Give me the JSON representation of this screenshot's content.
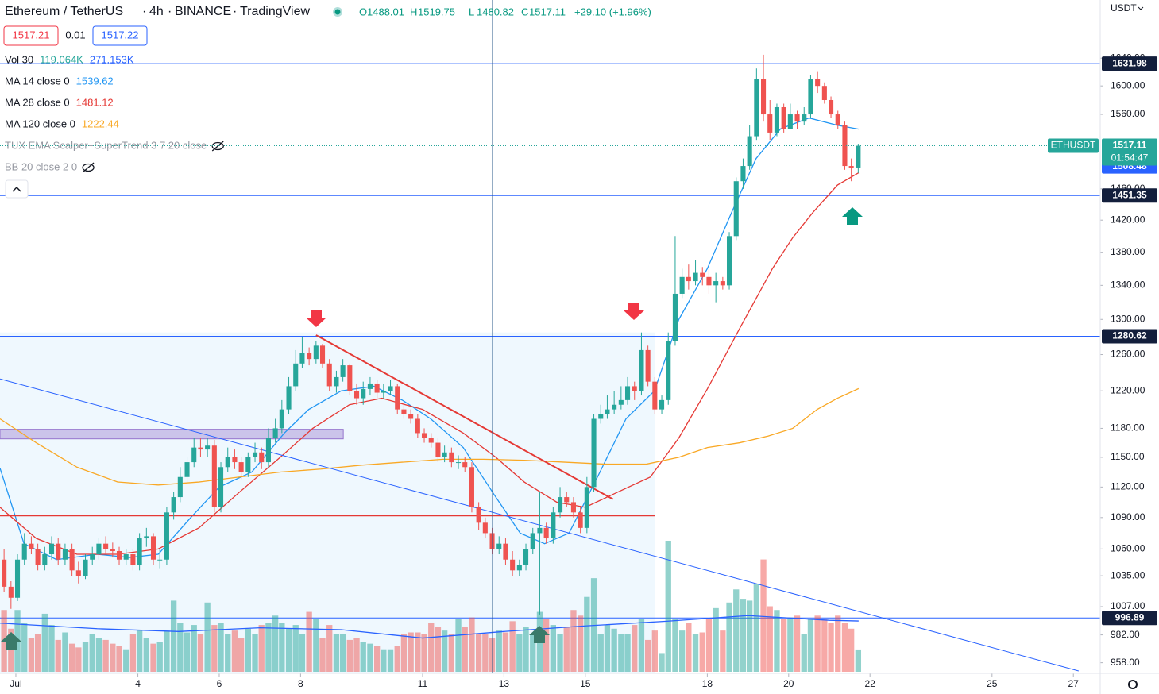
{
  "header": {
    "symbol": "Ethereum / TetherUS",
    "interval": "4h",
    "exchange": "BINANCE",
    "platform": "TradingView",
    "ohlc_letters": [
      "O",
      "H",
      "L",
      "C"
    ],
    "change": "+29.10 (+1.96%)",
    "quote": [
      "1517.21",
      "0.01",
      "1517.22"
    ],
    "currency": "USDT",
    "ticker": "ETHUSDT",
    "countdown": "01:54:47"
  },
  "indicators": [
    {
      "name": "Vol 30",
      "values": [
        "119.064K",
        "271.153K"
      ],
      "colors": [
        "#26a69a",
        "#2962ff"
      ]
    },
    {
      "name": "MA 14 close 0",
      "values": [
        "1539.62"
      ],
      "colors": [
        "#2196f3"
      ]
    },
    {
      "name": "MA 28 close 0",
      "values": [
        "1481.12"
      ],
      "colors": [
        "#e53935"
      ]
    },
    {
      "name": "MA 120 close 0",
      "values": [
        "1222.44"
      ],
      "colors": [
        "#f9a825"
      ]
    },
    {
      "name": "TUX EMA Scalper+SuperTrend 3 7 20 close",
      "values": [],
      "colors": []
    },
    {
      "name": "BB 20 close 2 0",
      "values": [],
      "colors": []
    }
  ],
  "chart_data": {
    "type": "candlestick",
    "log_scale": true,
    "grid": false,
    "up_color": "#26a69a",
    "down_color": "#ef5350",
    "xlim": [
      0.61,
      27.66
    ],
    "ylim": [
      949,
      1727
    ],
    "xticks": [
      {
        "value": 1,
        "label": "Jul"
      },
      4,
      6,
      8,
      11,
      13,
      15,
      18,
      20,
      22,
      25,
      27
    ],
    "yticks": [
      {
        "value": 958,
        "label": "958.00"
      },
      {
        "value": 982,
        "label": "982.00"
      },
      {
        "value": 1007,
        "label": "1007.00"
      },
      {
        "value": 1035,
        "label": "1035.00"
      },
      {
        "value": 1060,
        "label": "1060.00"
      },
      {
        "value": 1090,
        "label": "1090.00"
      },
      {
        "value": 1120,
        "label": "1120.00"
      },
      {
        "value": 1150,
        "label": "1150.00"
      },
      {
        "value": 1180,
        "label": "1180.00"
      },
      {
        "value": 1220,
        "label": "1220.00"
      },
      {
        "value": 1260,
        "label": "1260.00"
      },
      {
        "value": 1300,
        "label": "1300.00"
      },
      {
        "value": 1340,
        "label": "1340.00"
      },
      {
        "value": 1380,
        "label": "1380.00"
      },
      {
        "value": 1420,
        "label": "1420.00"
      },
      {
        "value": 1460,
        "label": "1460.00"
      },
      {
        "value": 1560,
        "label": "1560.00"
      },
      {
        "value": 1600,
        "label": "1600.00"
      },
      {
        "value": 1640,
        "label": "1640.00"
      }
    ],
    "x": [
      0.71,
      0.88,
      1.04,
      1.21,
      1.38,
      1.54,
      1.71,
      1.88,
      2.04,
      2.21,
      2.38,
      2.54,
      2.71,
      2.88,
      3.04,
      3.21,
      3.38,
      3.54,
      3.71,
      3.88,
      4.04,
      4.21,
      4.38,
      4.54,
      4.71,
      4.88,
      5.04,
      5.21,
      5.38,
      5.54,
      5.71,
      5.88,
      6.04,
      6.21,
      6.38,
      6.54,
      6.71,
      6.88,
      7.04,
      7.21,
      7.38,
      7.54,
      7.71,
      7.88,
      8.04,
      8.21,
      8.38,
      8.54,
      8.71,
      8.88,
      9.04,
      9.21,
      9.38,
      9.54,
      9.71,
      9.88,
      10.04,
      10.21,
      10.38,
      10.54,
      10.71,
      10.88,
      11.04,
      11.21,
      11.38,
      11.54,
      11.71,
      11.88,
      12.04,
      12.21,
      12.38,
      12.54,
      12.71,
      12.88,
      13.04,
      13.21,
      13.38,
      13.54,
      13.71,
      13.88,
      14.04,
      14.21,
      14.38,
      14.54,
      14.71,
      14.88,
      15.04,
      15.21,
      15.38,
      15.54,
      15.71,
      15.88,
      16.04,
      16.21,
      16.38,
      16.54,
      16.71,
      16.88,
      17.04,
      17.21,
      17.38,
      17.54,
      17.71,
      17.88,
      18.04,
      18.21,
      18.38,
      18.54,
      18.71,
      18.88,
      19.04,
      19.21,
      19.38,
      19.54,
      19.71,
      19.88,
      20.04,
      20.21,
      20.38,
      20.54,
      20.71,
      20.88,
      21.04,
      21.21,
      21.38,
      21.54,
      21.71
    ],
    "open": [
      1050,
      1025,
      1015,
      1050,
      1065,
      1060,
      1045,
      1055,
      1065,
      1050,
      1060,
      1040,
      1035,
      1050,
      1055,
      1065,
      1060,
      1058,
      1050,
      1055,
      1045,
      1070,
      1072,
      1050,
      1050,
      1095,
      1110,
      1130,
      1145,
      1160,
      1158,
      1162,
      1100,
      1140,
      1150,
      1145,
      1135,
      1150,
      1155,
      1145,
      1170,
      1180,
      1200,
      1225,
      1250,
      1262,
      1255,
      1270,
      1250,
      1225,
      1235,
      1248,
      1220,
      1212,
      1222,
      1228,
      1218,
      1220,
      1225,
      1200,
      1195,
      1190,
      1175,
      1170,
      1165,
      1150,
      1155,
      1145,
      1145,
      1140,
      1100,
      1085,
      1075,
      1060,
      1065,
      1050,
      1040,
      1045,
      1060,
      1075,
      1080,
      1070,
      1095,
      1110,
      1105,
      1095,
      1080,
      1120,
      1190,
      1195,
      1200,
      1205,
      1210,
      1225,
      1220,
      1265,
      1230,
      1200,
      1210,
      1275,
      1330,
      1350,
      1345,
      1355,
      1350,
      1340,
      1345,
      1340,
      1400,
      1470,
      1490,
      1530,
      1610,
      1560,
      1535,
      1570,
      1540,
      1560,
      1550,
      1560,
      1610,
      1600,
      1580,
      1560,
      1545,
      1490,
      1488.01
    ],
    "high": [
      1060,
      1030,
      1055,
      1075,
      1072,
      1065,
      1062,
      1072,
      1070,
      1065,
      1065,
      1048,
      1055,
      1062,
      1070,
      1072,
      1066,
      1062,
      1060,
      1060,
      1075,
      1080,
      1075,
      1060,
      1100,
      1115,
      1140,
      1150,
      1170,
      1170,
      1170,
      1168,
      1145,
      1160,
      1158,
      1150,
      1155,
      1165,
      1160,
      1180,
      1190,
      1210,
      1235,
      1265,
      1280,
      1268,
      1275,
      1272,
      1255,
      1242,
      1255,
      1250,
      1228,
      1230,
      1235,
      1232,
      1228,
      1232,
      1228,
      1205,
      1200,
      1195,
      1180,
      1175,
      1170,
      1162,
      1160,
      1152,
      1150,
      1145,
      1105,
      1090,
      1080,
      1072,
      1070,
      1058,
      1050,
      1065,
      1080,
      1115,
      1085,
      1100,
      1120,
      1115,
      1110,
      1100,
      1130,
      1195,
      1205,
      1215,
      1220,
      1225,
      1235,
      1230,
      1285,
      1270,
      1235,
      1215,
      1285,
      1400,
      1360,
      1365,
      1370,
      1362,
      1360,
      1355,
      1350,
      1405,
      1475,
      1500,
      1545,
      1625,
      1645,
      1580,
      1575,
      1575,
      1575,
      1565,
      1570,
      1615,
      1620,
      1605,
      1585,
      1565,
      1550,
      1500,
      1519.75
    ],
    "low": [
      1020,
      1005,
      1012,
      1045,
      1055,
      1040,
      1040,
      1050,
      1045,
      1045,
      1035,
      1028,
      1032,
      1045,
      1050,
      1055,
      1052,
      1045,
      1045,
      1040,
      1040,
      1062,
      1045,
      1042,
      1045,
      1088,
      1105,
      1125,
      1140,
      1150,
      1150,
      1095,
      1095,
      1135,
      1138,
      1128,
      1130,
      1145,
      1138,
      1140,
      1165,
      1175,
      1195,
      1220,
      1245,
      1248,
      1250,
      1245,
      1220,
      1218,
      1230,
      1215,
      1205,
      1205,
      1215,
      1212,
      1212,
      1215,
      1195,
      1190,
      1185,
      1170,
      1165,
      1160,
      1145,
      1145,
      1140,
      1138,
      1135,
      1095,
      1078,
      1070,
      1055,
      1055,
      1045,
      1035,
      1035,
      1040,
      1055,
      1000,
      1065,
      1065,
      1090,
      1100,
      1090,
      1075,
      1075,
      1115,
      1185,
      1190,
      1195,
      1200,
      1205,
      1210,
      1215,
      1225,
      1195,
      1195,
      1205,
      1270,
      1325,
      1335,
      1340,
      1340,
      1330,
      1320,
      1335,
      1335,
      1395,
      1460,
      1485,
      1525,
      1550,
      1525,
      1530,
      1535,
      1540,
      1540,
      1545,
      1555,
      1590,
      1575,
      1555,
      1540,
      1485,
      1470,
      1480.82
    ],
    "close": [
      1025,
      1015,
      1050,
      1065,
      1060,
      1045,
      1055,
      1065,
      1050,
      1060,
      1040,
      1035,
      1050,
      1055,
      1065,
      1060,
      1058,
      1050,
      1055,
      1045,
      1070,
      1072,
      1050,
      1050,
      1095,
      1110,
      1130,
      1145,
      1160,
      1158,
      1162,
      1100,
      1140,
      1150,
      1145,
      1135,
      1150,
      1155,
      1145,
      1170,
      1180,
      1200,
      1225,
      1250,
      1262,
      1255,
      1270,
      1250,
      1225,
      1235,
      1248,
      1220,
      1212,
      1222,
      1228,
      1218,
      1220,
      1225,
      1200,
      1195,
      1190,
      1175,
      1170,
      1165,
      1150,
      1155,
      1145,
      1145,
      1140,
      1100,
      1085,
      1075,
      1060,
      1065,
      1050,
      1040,
      1045,
      1060,
      1075,
      1080,
      1070,
      1095,
      1110,
      1105,
      1095,
      1080,
      1120,
      1190,
      1195,
      1200,
      1205,
      1210,
      1225,
      1220,
      1265,
      1230,
      1200,
      1210,
      1275,
      1330,
      1350,
      1345,
      1355,
      1350,
      1340,
      1345,
      1340,
      1400,
      1470,
      1490,
      1530,
      1610,
      1560,
      1535,
      1570,
      1540,
      1560,
      1550,
      1560,
      1610,
      1600,
      1580,
      1560,
      1545,
      1490,
      1488.01,
      1517.11
    ],
    "volume": [
      330,
      230,
      330,
      260,
      180,
      200,
      310,
      250,
      170,
      210,
      150,
      130,
      160,
      200,
      180,
      170,
      150,
      140,
      120,
      200,
      220,
      180,
      150,
      160,
      220,
      380,
      260,
      210,
      250,
      200,
      370,
      250,
      260,
      200,
      220,
      180,
      230,
      200,
      250,
      260,
      300,
      260,
      230,
      250,
      200,
      320,
      280,
      180,
      250,
      200,
      200,
      170,
      180,
      160,
      150,
      140,
      120,
      120,
      140,
      200,
      210,
      210,
      200,
      260,
      240,
      220,
      200,
      280,
      240,
      290,
      200,
      200,
      180,
      220,
      210,
      270,
      200,
      240,
      200,
      320,
      280,
      250,
      200,
      240,
      330,
      300,
      400,
      500,
      200,
      250,
      230,
      200,
      200,
      250,
      280,
      170,
      220,
      100,
      700,
      280,
      220,
      260,
      200,
      210,
      280,
      340,
      220,
      370,
      440,
      390,
      380,
      470,
      600,
      350,
      330,
      280,
      290,
      300,
      200,
      280,
      300,
      280,
      260,
      300,
      260,
      230,
      119.064
    ],
    "volume_ma": {
      "color": "#2962ff",
      "x": [
        0.61,
        3,
        5,
        7,
        9,
        11,
        13,
        15,
        17,
        19,
        21,
        21.72
      ],
      "values": [
        260,
        230,
        215,
        235,
        225,
        180,
        215,
        245,
        270,
        300,
        275,
        271.153
      ]
    },
    "overlays": [
      {
        "name": "MA 14",
        "color": "#2196f3",
        "x": [
          0.61,
          1.2,
          2,
          3,
          3.8,
          4.5,
          5.3,
          6,
          6.8,
          7.6,
          8.2,
          9,
          9.8,
          10.5,
          11.2,
          12,
          12.8,
          13.4,
          14,
          14.6,
          15.3,
          16,
          16.7,
          17.3,
          18,
          18.6,
          19.2,
          19.8,
          20.5,
          21.2,
          21.72
        ],
        "values": [
          1139,
          1065,
          1050,
          1055,
          1052,
          1055,
          1090,
          1120,
          1135,
          1175,
          1200,
          1220,
          1225,
          1210,
          1190,
          1160,
          1110,
          1075,
          1065,
          1075,
          1130,
          1190,
          1220,
          1300,
          1360,
          1430,
          1500,
          1540,
          1555,
          1545,
          1539.62
        ]
      },
      {
        "name": "MA 28",
        "color": "#e53935",
        "x": [
          0.61,
          1.5,
          2.5,
          3.5,
          4.5,
          5.5,
          6.5,
          7.5,
          8.3,
          9.2,
          10,
          11,
          12,
          12.8,
          13.5,
          14.3,
          15,
          15.8,
          16.6,
          17.3,
          18,
          18.8,
          19.6,
          20.1,
          20.6,
          21.2,
          21.72
        ],
        "values": [
          1100,
          1070,
          1055,
          1055,
          1060,
          1080,
          1115,
          1150,
          1180,
          1205,
          1212,
          1200,
          1175,
          1150,
          1125,
          1105,
          1100,
          1115,
          1130,
          1170,
          1222,
          1290,
          1360,
          1398,
          1430,
          1465,
          1481.12
        ]
      },
      {
        "name": "MA 120",
        "color": "#f9a825",
        "x": [
          0.61,
          1.5,
          2.5,
          3.5,
          4.5,
          5.5,
          6.5,
          7.5,
          8.5,
          9.5,
          10.5,
          11.5,
          12.5,
          13.5,
          14.5,
          15.5,
          16.5,
          17.3,
          18,
          18.8,
          19.5,
          20.1,
          20.7,
          21.2,
          21.72
        ],
        "values": [
          1190,
          1165,
          1140,
          1125,
          1122,
          1125,
          1130,
          1135,
          1138,
          1142,
          1145,
          1148,
          1148,
          1147,
          1145,
          1143,
          1143,
          1150,
          1160,
          1165,
          1172,
          1180,
          1200,
          1212,
          1222.44
        ]
      }
    ],
    "zones": [
      {
        "x": [
          0.61,
          16.72
        ],
        "y": [
          949,
          1285
        ],
        "color": "rgba(33,150,243,0.07)"
      },
      {
        "x": [
          0.61,
          9.05
        ],
        "y": [
          1169,
          1179
        ],
        "color": "rgba(149,117,205,0.4)"
      }
    ],
    "lines": [
      {
        "x": [
          8.38,
          15.68
        ],
        "y": [
          1282,
          1108
        ],
        "color": "#e53935",
        "width": 2
      },
      {
        "x": [
          0.61,
          16.72
        ],
        "y": [
          1092,
          1092
        ],
        "color": "#e53935",
        "width": 2
      },
      {
        "x": [
          0.61,
          27.13
        ],
        "y": [
          1233,
          951
        ],
        "color": "#2962ff",
        "width": 1
      }
    ],
    "levels": [
      {
        "value": 1631.98,
        "label": "1631.98",
        "color": "#131f3c"
      },
      {
        "value": 1451.35,
        "label": "1451.35",
        "color": "#131f3c"
      },
      {
        "value": 1280.62,
        "label": "1280.62",
        "color": "#131f3c"
      },
      {
        "value": 996.89,
        "label": "996.89",
        "color": "#131f3c"
      }
    ],
    "badges": [
      {
        "value": 1508.48,
        "label": "1508.48",
        "color": "#2962ff"
      }
    ]
  }
}
